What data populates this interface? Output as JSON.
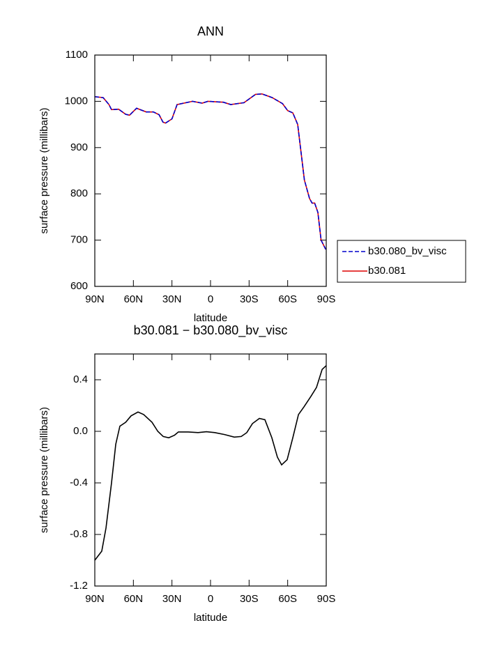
{
  "chart_data": [
    {
      "type": "line",
      "title": "ANN",
      "xlabel": "latitude",
      "ylabel": "surface pressure (millibars)",
      "x": [
        90,
        83.5,
        79,
        77,
        71.5,
        66,
        63,
        57.5,
        50,
        44.4,
        40,
        37,
        35,
        30,
        26,
        14,
        6.5,
        2,
        -10,
        -15.7,
        -26,
        -35,
        -40,
        -48,
        -56,
        -60,
        -64,
        -67.8,
        -73,
        -77,
        -79,
        -81,
        -83.5,
        -86,
        -89.6
      ],
      "xlim": [
        90,
        -90
      ],
      "xticks": [
        {
          "value": 90,
          "label": "90N"
        },
        {
          "value": 60,
          "label": "60N"
        },
        {
          "value": 30,
          "label": "30N"
        },
        0,
        {
          "value": -30,
          "label": "30S"
        },
        {
          "value": -60,
          "label": "60S"
        },
        {
          "value": -90,
          "label": "90S"
        }
      ],
      "ylim": [
        600,
        1100
      ],
      "yticks": [
        600,
        700,
        800,
        900,
        1000,
        1100
      ],
      "legend": "right",
      "series": [
        {
          "name": "b30.080_bv_visc",
          "color": "#0000cc",
          "linestyle": "dashed",
          "values": [
            1010,
            1008,
            993,
            982,
            983,
            972,
            970,
            985,
            977,
            977,
            971,
            955,
            953,
            962,
            993,
            1000,
            996,
            1000,
            998,
            993,
            997,
            1015,
            1016,
            1008,
            995,
            980,
            975,
            950,
            830,
            790,
            780,
            780,
            760,
            700,
            680
          ]
        },
        {
          "name": "b30.081",
          "color": "#dd0000",
          "linestyle": "solid",
          "values": [
            1010,
            1008,
            993,
            982,
            983,
            972,
            970,
            985,
            977,
            977,
            971,
            955,
            953,
            962,
            993,
            1000,
            996,
            1000,
            998,
            993,
            997,
            1015,
            1016,
            1008,
            995,
            980,
            975,
            950,
            830,
            790,
            780,
            780,
            760,
            700,
            680
          ]
        }
      ]
    },
    {
      "type": "line",
      "title": "b30.081 − b30.080_bv_visc",
      "xlabel": "latitude",
      "ylabel": "surface pressure (millibars)",
      "x": [
        90,
        84.6,
        81.3,
        77,
        73.7,
        70.5,
        66,
        61.8,
        56.4,
        52,
        45.5,
        41,
        36.8,
        32.5,
        28,
        25,
        17.3,
        9.7,
        3.2,
        -3.3,
        -10.9,
        -18.5,
        -23.9,
        -28.2,
        -32.6,
        -38,
        -42.3,
        -47.7,
        -52,
        -55.3,
        -59.6,
        -64,
        -68.4,
        -72.7,
        -78,
        -82.4,
        -86.8,
        -90
      ],
      "xlim": [
        90,
        -90
      ],
      "xticks": [
        {
          "value": 90,
          "label": "90N"
        },
        {
          "value": 60,
          "label": "60N"
        },
        {
          "value": 30,
          "label": "30N"
        },
        0,
        {
          "value": -30,
          "label": "30S"
        },
        {
          "value": -60,
          "label": "60S"
        },
        {
          "value": -90,
          "label": "90S"
        }
      ],
      "ylim": [
        -1.2,
        0.6
      ],
      "yticks": [
        -1.2,
        -0.8,
        -0.4,
        {
          "value": 0,
          "label": "0.0"
        },
        0.4
      ],
      "series": [
        {
          "color": "#000000",
          "linestyle": "solid",
          "values": [
            -1.0,
            -0.93,
            -0.75,
            -0.4,
            -0.1,
            0.04,
            0.07,
            0.12,
            0.15,
            0.13,
            0.07,
            0.0,
            -0.04,
            -0.05,
            -0.03,
            -0.005,
            -0.005,
            -0.01,
            -0.003,
            -0.01,
            -0.025,
            -0.045,
            -0.04,
            -0.01,
            0.06,
            0.1,
            0.09,
            -0.05,
            -0.2,
            -0.26,
            -0.22,
            -0.05,
            0.13,
            0.19,
            0.27,
            0.34,
            0.48,
            0.51
          ]
        }
      ]
    }
  ]
}
